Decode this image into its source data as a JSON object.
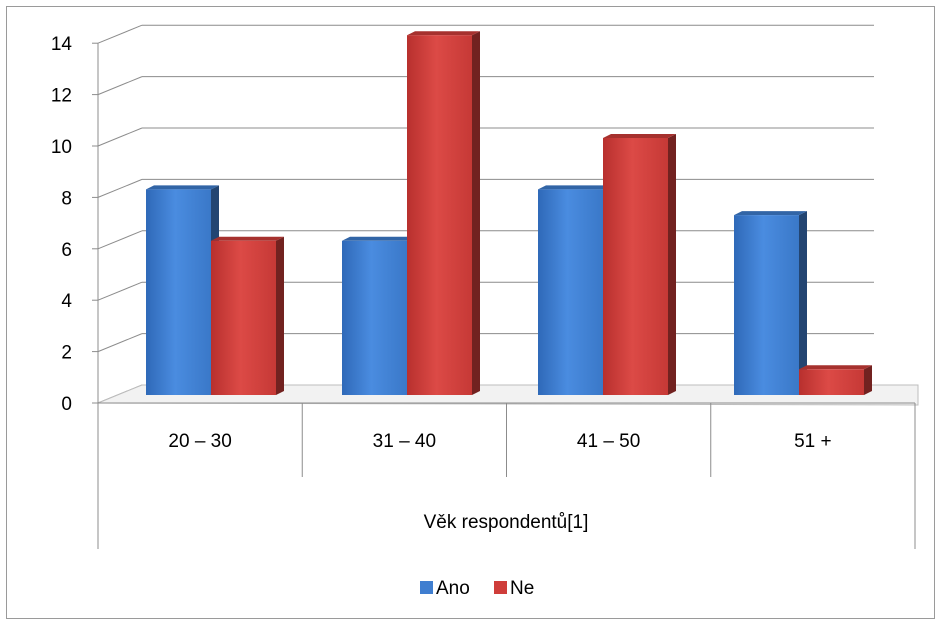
{
  "chart_data": {
    "type": "bar",
    "categories": [
      "20 – 30",
      "31 – 40",
      "41 – 50",
      "51 +"
    ],
    "series": [
      {
        "name": "Ano",
        "values": [
          8,
          6,
          8,
          7
        ],
        "color": "#3f7ed0"
      },
      {
        "name": "Ne",
        "values": [
          6,
          14,
          10,
          1
        ],
        "color": "#cf3d3a"
      }
    ],
    "xlabel": "Věk respondentů[1]",
    "ylabel": "",
    "ylim": [
      0,
      14
    ],
    "yticks": [
      0,
      2,
      4,
      6,
      8,
      10,
      12,
      14
    ],
    "grid": true,
    "legend": "bottom",
    "style": "3d-clustered-column"
  }
}
